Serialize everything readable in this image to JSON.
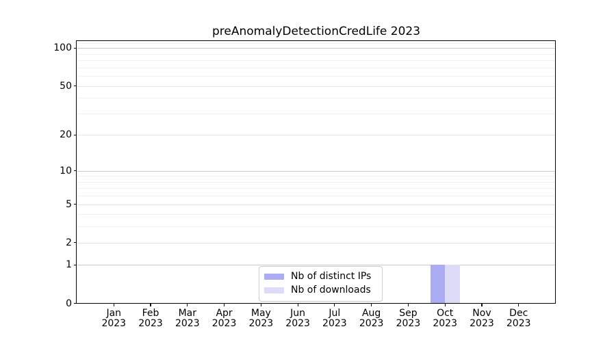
{
  "chart_data": {
    "type": "bar",
    "title": "preAnomalyDetectionCredLife 2023",
    "categories": [
      [
        "Jan",
        "2023"
      ],
      [
        "Feb",
        "2023"
      ],
      [
        "Mar",
        "2023"
      ],
      [
        "Apr",
        "2023"
      ],
      [
        "May",
        "2023"
      ],
      [
        "Jun",
        "2023"
      ],
      [
        "Jul",
        "2023"
      ],
      [
        "Aug",
        "2023"
      ],
      [
        "Sep",
        "2023"
      ],
      [
        "Oct",
        "2023"
      ],
      [
        "Nov",
        "2023"
      ],
      [
        "Dec",
        "2023"
      ]
    ],
    "series": [
      {
        "name": "Nb of distinct IPs",
        "color": "#acacf4",
        "values": [
          0,
          0,
          0,
          0,
          0,
          0,
          0,
          0,
          0,
          1,
          0,
          0
        ]
      },
      {
        "name": "Nb of downloads",
        "color": "#dcdcf8",
        "values": [
          0,
          0,
          0,
          0,
          0,
          0,
          0,
          0,
          0,
          1,
          0,
          0
        ]
      }
    ],
    "xlabel": "",
    "ylabel": "",
    "y_scale": "log1p",
    "y_ticks": [
      0,
      1,
      2,
      5,
      10,
      20,
      50,
      100
    ],
    "y_minor_ticks": [
      3,
      4,
      6,
      7,
      8,
      9,
      30,
      40,
      60,
      70,
      80,
      90,
      110
    ],
    "y_max": 113,
    "grid": "both",
    "legend_position": "lower-center-inside",
    "bar_group_width": 0.8
  },
  "colors": {
    "background": "#ffffff",
    "axis": "#000000",
    "grid_major": "#c9c9c9",
    "grid_mid": "#e3e3e3",
    "grid_minor": "#f0f0f0",
    "legend_border": "#cccccc",
    "text": "#000000"
  }
}
